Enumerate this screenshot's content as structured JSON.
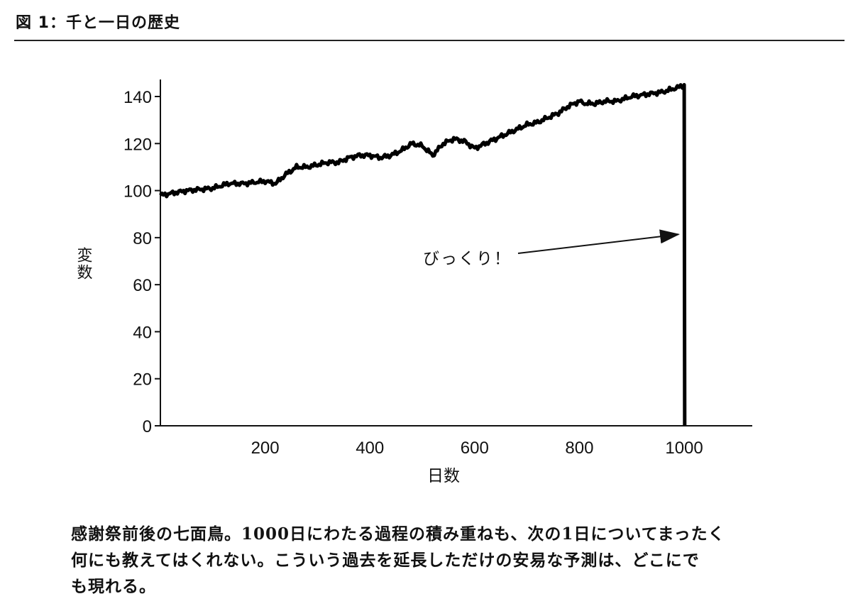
{
  "figure": {
    "title": "図 1：千と一日の歴史"
  },
  "chart_data": {
    "type": "line",
    "xlabel": "日数",
    "ylabel": "変数",
    "x_ticks": [
      200,
      400,
      600,
      800,
      1000
    ],
    "y_ticks": [
      0,
      20,
      40,
      60,
      80,
      100,
      120,
      140
    ],
    "xlim": [
      0,
      1130
    ],
    "ylim": [
      0,
      145
    ],
    "grid": false,
    "series": [
      {
        "x": [
          0,
          50,
          100,
          130,
          160,
          200,
          220,
          240,
          260,
          280,
          300,
          320,
          340,
          360,
          380,
          400,
          420,
          440,
          460,
          480,
          500,
          520,
          540,
          560,
          580,
          600,
          620,
          640,
          660,
          680,
          700,
          720,
          740,
          760,
          780,
          800,
          810,
          830,
          850,
          870,
          900,
          930,
          960,
          990,
          1000,
          1001
        ],
        "y": [
          98,
          100,
          101,
          103,
          103,
          104,
          103,
          107,
          110,
          110,
          111,
          112,
          112,
          114,
          115,
          115,
          114,
          115,
          117,
          120,
          119,
          115,
          120,
          122,
          121,
          118,
          120,
          122,
          124,
          126,
          128,
          129,
          131,
          133,
          136,
          138,
          137,
          137,
          138,
          138,
          140,
          141,
          142,
          144,
          145,
          0
        ]
      }
    ],
    "annotation": {
      "text": "びっくり！",
      "x": 1000,
      "y": 85
    }
  },
  "caption": {
    "lines": [
      "感謝祭前後の七面鳥。1000日にわたる過程の積み重ねも、次の1日についてまったく",
      "何にも教えてはくれない。こういう過去を延長しただけの安易な予測は、どこにで",
      "も現れる。"
    ]
  }
}
